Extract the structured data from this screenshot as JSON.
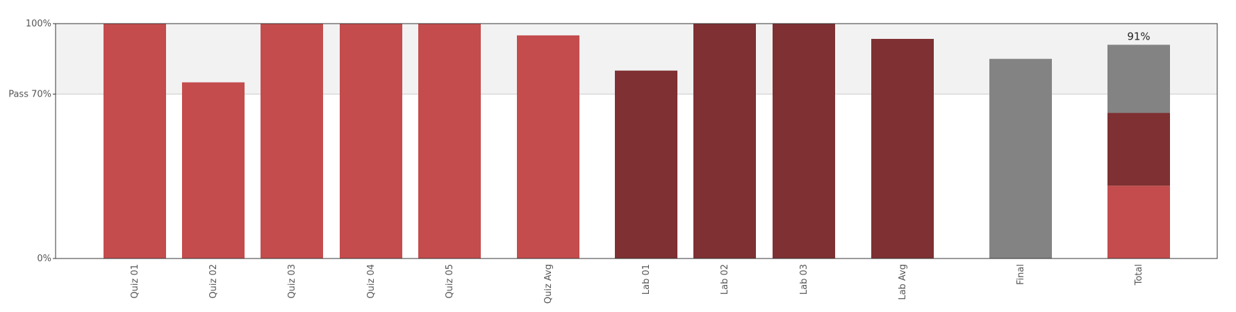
{
  "chart_data": {
    "type": "bar",
    "categories": [
      "Quiz 01",
      "Quiz 02",
      "Quiz 03",
      "Quiz 04",
      "Quiz 05",
      "Quiz Avg",
      "Lab 01",
      "Lab 02",
      "Lab 03",
      "Lab Avg",
      "Final",
      "Total"
    ],
    "values": [
      100,
      75,
      100,
      100,
      100,
      95,
      80,
      100,
      100,
      93.5,
      85,
      null
    ],
    "bar_colors": [
      "#c44c4d",
      "#c44c4d",
      "#c44c4d",
      "#c44c4d",
      "#c44c4d",
      "#c44c4d",
      "#7e3032",
      "#7e3032",
      "#7e3032",
      "#7e3032",
      "#838383",
      null
    ],
    "total": {
      "segments": [
        {
          "value": 31,
          "color": "#c44c4d"
        },
        {
          "value": 31,
          "color": "#7e3032"
        },
        {
          "value": 29,
          "color": "#838383"
        }
      ],
      "label": "91%"
    },
    "y_ticks": [
      {
        "value": 0,
        "label": "0%"
      },
      {
        "value": 70,
        "label": "Pass 70%"
      },
      {
        "value": 100,
        "label": "100%"
      }
    ],
    "ylim": [
      0,
      100
    ],
    "pass_threshold": 70,
    "pass_band_color": "#f2f2f2",
    "grid": false,
    "legend": "none"
  }
}
